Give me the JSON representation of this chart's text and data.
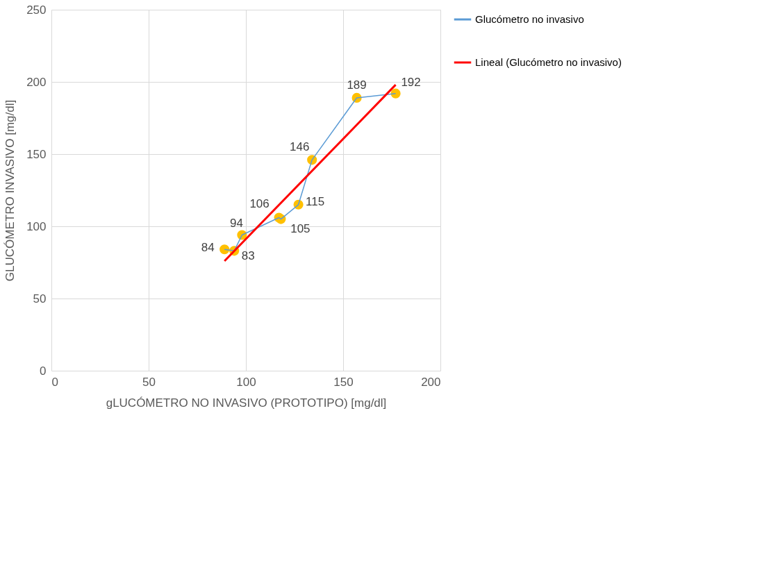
{
  "chart_data": {
    "type": "line",
    "xlabel": "gLUCÓMETRO NO INVASIVO (PROTOTIPO) [mg/dl]",
    "ylabel": "GLUCÓMETRO INVASIVO [mg/dl]",
    "xlim": [
      0,
      200
    ],
    "xticks": [
      0,
      50,
      100,
      150,
      200
    ],
    "ylim": [
      0,
      250
    ],
    "yticks": [
      0,
      50,
      100,
      150,
      200,
      250
    ],
    "grid": true,
    "legend": "right",
    "series": [
      {
        "name": "Glucómetro no invasivo",
        "marker": "circle",
        "value_labels": [
          "84",
          "83",
          "94",
          "106",
          "105",
          "115",
          "146",
          "189",
          "192"
        ],
        "color": "#5b9bd5",
        "colors": [
          "#ffc000",
          "#ffc000",
          "#ffc000",
          "#ffc000",
          "#ffc000",
          "#ffc000",
          "#ffc000",
          "#ffc000",
          "#ffc000"
        ],
        "x": [
          89,
          94,
          98,
          117,
          118,
          127,
          134,
          157,
          177
        ],
        "values": [
          84,
          83,
          94,
          106,
          105,
          115,
          146,
          189,
          192
        ]
      },
      {
        "name": "Lineal (Glucómetro no invasivo)",
        "marker": "none",
        "color": "#ff0000",
        "x": [
          89,
          177
        ],
        "values": [
          76,
          198
        ]
      }
    ]
  }
}
